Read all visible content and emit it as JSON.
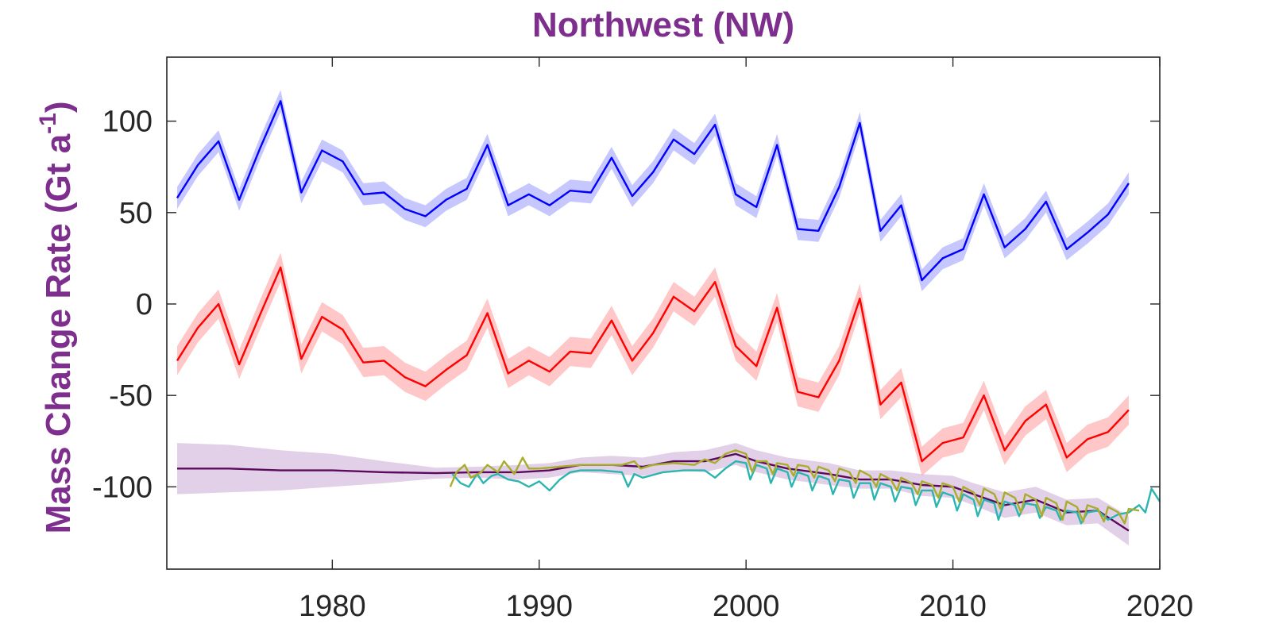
{
  "chart_data": {
    "type": "line",
    "title": "Northwest (NW)",
    "ylabel_main": "Mass Change Rate (Gt a",
    "ylabel_sup": "-1",
    "ylabel_end": ")",
    "xlim": [
      1972,
      2020
    ],
    "ylim": [
      -145,
      135
    ],
    "xticks": [
      1980,
      1990,
      2000,
      2010,
      2020
    ],
    "yticks": [
      -100,
      -50,
      0,
      50,
      100
    ],
    "grid": false,
    "legend": "none",
    "series": [
      {
        "color": "#0000FF",
        "band_color": "#9999FF",
        "band_halfwidth": 6,
        "x": [
          1972.5,
          1973.5,
          1974.5,
          1975.5,
          1976.5,
          1977.5,
          1978.5,
          1979.5,
          1980.5,
          1981.5,
          1982.5,
          1983.5,
          1984.5,
          1985.5,
          1986.5,
          1987.5,
          1988.5,
          1989.5,
          1990.5,
          1991.5,
          1992.5,
          1993.5,
          1994.5,
          1995.5,
          1996.5,
          1997.5,
          1998.5,
          1999.5,
          2000.5,
          2001.5,
          2002.5,
          2003.5,
          2004.5,
          2005.5,
          2006.5,
          2007.5,
          2008.5,
          2009.5,
          2010.5,
          2011.5,
          2012.5,
          2013.5,
          2014.5,
          2015.5,
          2016.5,
          2017.5,
          2018.5
        ],
        "y": [
          58,
          76,
          89,
          57,
          85,
          111,
          61,
          84,
          78,
          60,
          61,
          52,
          48,
          57,
          63,
          87,
          54,
          60,
          54,
          62,
          61,
          80,
          59,
          72,
          90,
          82,
          98,
          60,
          53,
          87,
          41,
          40,
          64,
          99,
          40,
          54,
          13,
          25,
          30,
          60,
          31,
          41,
          56,
          30,
          39,
          49,
          66
        ]
      },
      {
        "color": "#FF0000",
        "band_color": "#FF9999",
        "band_halfwidth": 8,
        "x": [
          1972.5,
          1973.5,
          1974.5,
          1975.5,
          1976.5,
          1977.5,
          1978.5,
          1979.5,
          1980.5,
          1981.5,
          1982.5,
          1983.5,
          1984.5,
          1985.5,
          1986.5,
          1987.5,
          1988.5,
          1989.5,
          1990.5,
          1991.5,
          1992.5,
          1993.5,
          1994.5,
          1995.5,
          1996.5,
          1997.5,
          1998.5,
          1999.5,
          2000.5,
          2001.5,
          2002.5,
          2003.5,
          2004.5,
          2005.5,
          2006.5,
          2007.5,
          2008.5,
          2009.5,
          2010.5,
          2011.5,
          2012.5,
          2013.5,
          2014.5,
          2015.5,
          2016.5,
          2017.5,
          2018.5
        ],
        "y": [
          -31,
          -13,
          0,
          -33,
          -6,
          20,
          -30,
          -7,
          -14,
          -32,
          -31,
          -40,
          -45,
          -36,
          -28,
          -5,
          -38,
          -31,
          -37,
          -26,
          -27,
          -9,
          -31,
          -16,
          4,
          -4,
          12,
          -23,
          -34,
          -2,
          -48,
          -51,
          -31,
          3,
          -55,
          -43,
          -86,
          -76,
          -73,
          -50,
          -80,
          -64,
          -55,
          -84,
          -74,
          -70,
          -58
        ]
      },
      {
        "color": "#5B0A5E",
        "band_color": "#C9A9D4",
        "x": [
          1972.5,
          1975,
          1977.5,
          1980,
          1982.5,
          1985,
          1987,
          1989,
          1990.5,
          1992,
          1993.5,
          1995,
          1996.5,
          1998,
          1999.5,
          2000.5,
          2002,
          2004,
          2005.5,
          2007,
          2008.5,
          2010,
          2011,
          2012.5,
          2014,
          2015.5,
          2017,
          2018.5
        ],
        "y": [
          -90,
          -90,
          -91,
          -91,
          -92,
          -92.5,
          -92,
          -92,
          -91,
          -88,
          -88,
          -89,
          -86,
          -86,
          -82,
          -86,
          -90,
          -93,
          -96,
          -96,
          -99,
          -100,
          -104,
          -110,
          -107,
          -114,
          -113,
          -124
        ],
        "band_halfwidth": [
          14,
          13,
          11,
          9,
          6,
          3,
          3,
          4,
          4,
          4,
          5,
          5,
          5,
          6,
          6,
          6,
          6,
          6,
          5,
          5,
          6,
          6,
          6,
          7,
          7,
          7,
          7,
          8
        ]
      },
      {
        "color": "#2CB5B0",
        "band_color": "#A9E4E0",
        "x": [
          1985.8,
          1986.2,
          1986.6,
          1987,
          1987.3,
          1987.7,
          1988,
          1988.5,
          1989,
          1989.5,
          1990,
          1990.5,
          1991,
          1991.5,
          1992,
          1993,
          1994,
          1994.3,
          1994.6,
          1995,
          1996,
          1997,
          1998,
          1998.5,
          1999,
          1999.5,
          2000,
          2000.2,
          2000.5,
          2001,
          2001.2,
          2001.5,
          2002,
          2002.2,
          2002.5,
          2003,
          2003.2,
          2003.5,
          2004,
          2004.2,
          2004.5,
          2005,
          2005.2,
          2005.5,
          2006,
          2006.2,
          2006.5,
          2007,
          2007.2,
          2007.5,
          2008,
          2008.2,
          2008.5,
          2009,
          2009.2,
          2009.5,
          2010,
          2010.2,
          2010.5,
          2011,
          2011.2,
          2011.5,
          2012,
          2012.2,
          2012.5,
          2013,
          2013.2,
          2013.5,
          2014,
          2014.2,
          2014.5,
          2015,
          2015.2,
          2015.5,
          2016,
          2016.2,
          2016.5,
          2017,
          2017.5,
          2018,
          2018.5,
          2019,
          2019.3,
          2019.6,
          2020
        ],
        "y": [
          -93,
          -98,
          -100,
          -93,
          -98,
          -94,
          -93,
          -96,
          -97,
          -100,
          -97,
          -102,
          -96,
          -92,
          -91,
          -91,
          -92,
          -100,
          -93,
          -95,
          -92,
          -91,
          -91,
          -95,
          -90,
          -86,
          -87,
          -96,
          -88,
          -90,
          -98,
          -90,
          -92,
          -100,
          -92,
          -94,
          -102,
          -94,
          -96,
          -104,
          -96,
          -97,
          -106,
          -98,
          -98,
          -107,
          -98,
          -100,
          -108,
          -100,
          -101,
          -110,
          -102,
          -102,
          -111,
          -103,
          -105,
          -113,
          -104,
          -107,
          -116,
          -107,
          -109,
          -118,
          -108,
          -110,
          -116,
          -109,
          -110,
          -117,
          -111,
          -113,
          -118,
          -113,
          -114,
          -120,
          -114,
          -113,
          -118,
          -115,
          -114,
          -110,
          -114,
          -101,
          -108
        ]
      },
      {
        "color": "#A8AD2C",
        "band_color": "#E2E3B5",
        "x": [
          1985.7,
          1986,
          1986.4,
          1986.7,
          1987.2,
          1987.5,
          1988,
          1988.3,
          1988.8,
          1989.2,
          1989.5,
          1990,
          1991,
          1992,
          1993,
          1994,
          1994.6,
          1994.9,
          1995.5,
          1996.5,
          1997.5,
          1998,
          1998.5,
          1999,
          1999.5,
          2000,
          2000.3,
          2000.5,
          2001,
          2001.3,
          2001.5,
          2002,
          2002.3,
          2002.5,
          2003,
          2003.3,
          2003.5,
          2004,
          2004.3,
          2004.5,
          2005,
          2005.3,
          2005.5,
          2006,
          2006.3,
          2006.5,
          2007,
          2007.3,
          2007.5,
          2008,
          2008.3,
          2008.5,
          2009,
          2009.3,
          2009.5,
          2010,
          2010.3,
          2010.5,
          2011,
          2011.3,
          2011.5,
          2012,
          2012.3,
          2012.5,
          2013,
          2013.3,
          2013.5,
          2014,
          2014.3,
          2014.5,
          2015,
          2015.3,
          2015.5,
          2016,
          2016.3,
          2016.5,
          2017,
          2017.3,
          2017.5,
          2018,
          2018.3,
          2018.5,
          2019
        ],
        "y": [
          -100,
          -92,
          -88,
          -95,
          -92,
          -88,
          -92,
          -86,
          -93,
          -84,
          -90,
          -90,
          -89,
          -88,
          -88,
          -88,
          -86,
          -90,
          -88,
          -87,
          -88,
          -85,
          -87,
          -82,
          -80,
          -82,
          -92,
          -86,
          -86,
          -93,
          -87,
          -88,
          -94,
          -88,
          -89,
          -95,
          -89,
          -91,
          -97,
          -90,
          -92,
          -98,
          -91,
          -94,
          -100,
          -93,
          -96,
          -102,
          -95,
          -98,
          -104,
          -97,
          -99,
          -106,
          -98,
          -100,
          -108,
          -100,
          -103,
          -110,
          -101,
          -104,
          -112,
          -103,
          -106,
          -114,
          -104,
          -107,
          -116,
          -106,
          -109,
          -118,
          -108,
          -111,
          -119,
          -110,
          -112,
          -119,
          -111,
          -114,
          -120,
          -112,
          -113
        ]
      }
    ]
  }
}
